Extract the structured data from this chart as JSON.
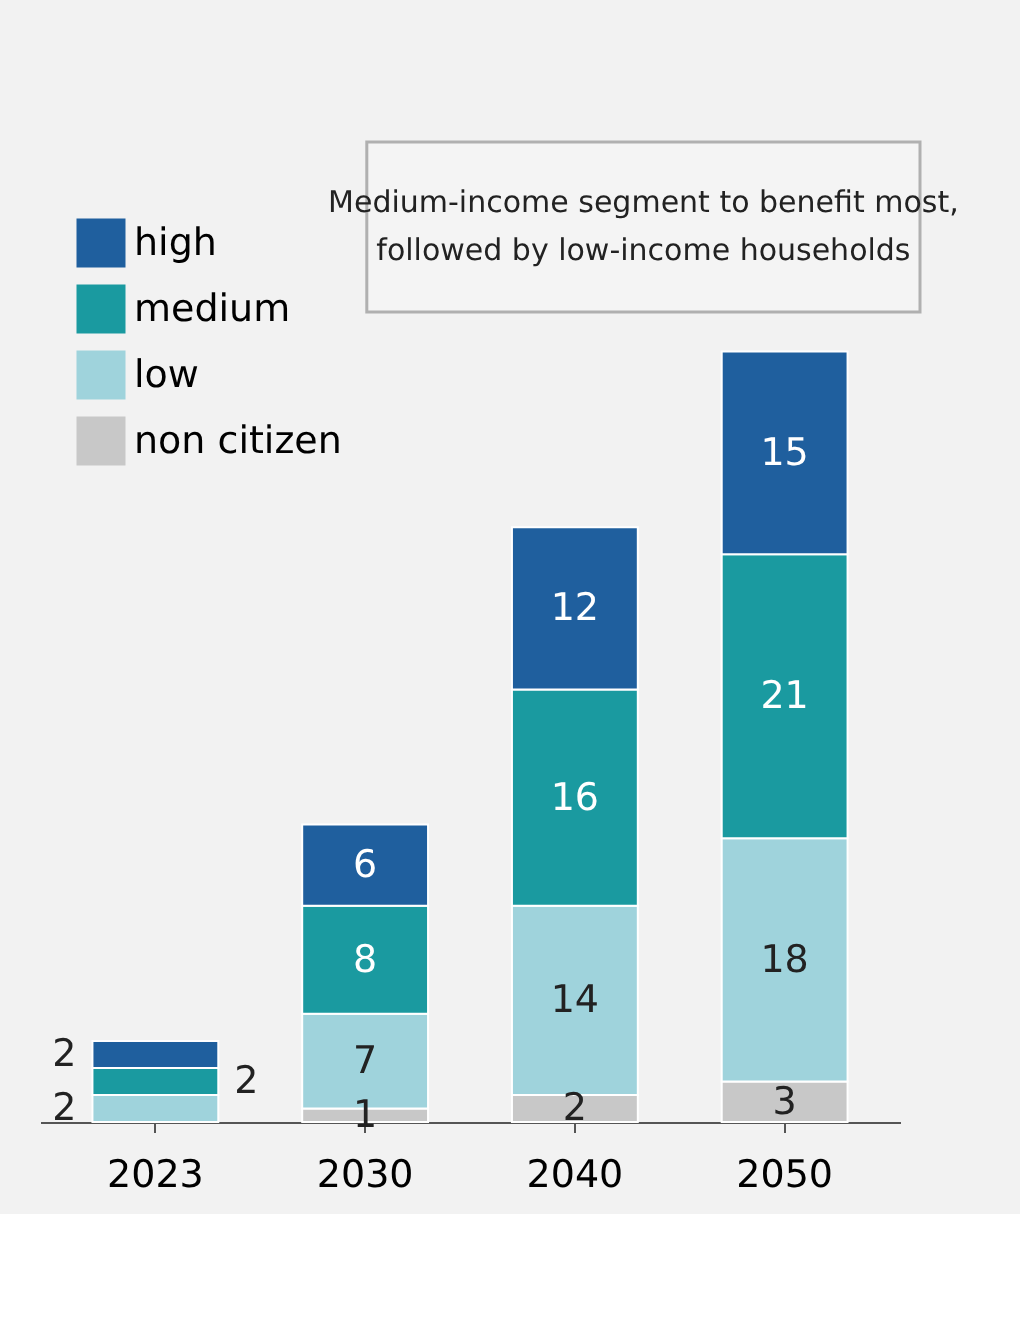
{
  "chart_data": {
    "type": "bar",
    "stacked": true,
    "categories": [
      "2023",
      "2030",
      "2040",
      "2050"
    ],
    "series": [
      {
        "name": "non citizen",
        "color": "#c8c8c8",
        "values": [
          null,
          1,
          2,
          3
        ]
      },
      {
        "name": "low",
        "color": "#9fd3dc",
        "values": [
          2,
          7,
          14,
          18
        ]
      },
      {
        "name": "medium",
        "color": "#1a9aa0",
        "values": [
          2,
          8,
          16,
          21
        ]
      },
      {
        "name": "high",
        "color": "#1f5f9e",
        "values": [
          2,
          6,
          12,
          15
        ]
      }
    ],
    "data_labels": true,
    "legend": "top left",
    "grid": false,
    "annotations": [
      "Medium-income segment to benefit most, followed by low-income households"
    ]
  }
}
